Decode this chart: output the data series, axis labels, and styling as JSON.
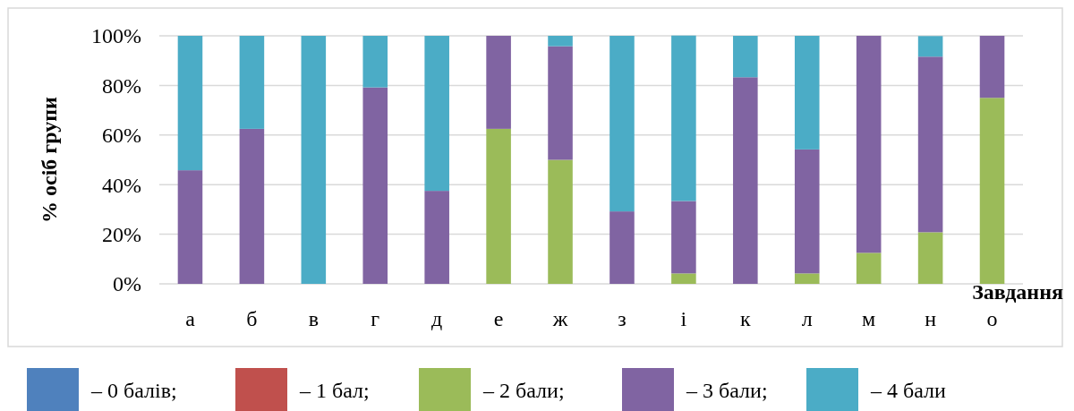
{
  "chart_data": {
    "type": "bar",
    "stacked": true,
    "ylabel": "% осіб групи",
    "xlabel": "Завдання",
    "categories": [
      "а",
      "б",
      "в",
      "г",
      "д",
      "е",
      "ж",
      "з",
      "і",
      "к",
      "л",
      "м",
      "н",
      "о"
    ],
    "series": [
      {
        "name": "– 0 балів;",
        "color": "#4f81bd",
        "values": [
          0,
          0,
          0,
          0,
          0,
          0,
          0,
          0,
          0,
          0,
          0,
          0,
          0,
          0
        ]
      },
      {
        "name": "– 1 бал;",
        "color": "#c0504d",
        "values": [
          0,
          0,
          0,
          0,
          0,
          0,
          0,
          0,
          0,
          0,
          0,
          0,
          0,
          0
        ]
      },
      {
        "name": "– 2 бали;",
        "color": "#9bbb59",
        "values": [
          0,
          0,
          0,
          0,
          0,
          62.5,
          50,
          0,
          4.2,
          0,
          4.2,
          12.5,
          20.8,
          75
        ]
      },
      {
        "name": "– 3 бали;",
        "color": "#8064a2",
        "values": [
          45.8,
          62.5,
          0,
          79.2,
          37.5,
          37.5,
          45.8,
          29.2,
          29.2,
          83.3,
          50,
          87.5,
          70.8,
          25
        ]
      },
      {
        "name": "– 4 бали",
        "color": "#4bacc6",
        "values": [
          54.2,
          37.5,
          100,
          20.8,
          62.5,
          0,
          4.2,
          70.8,
          66.7,
          16.7,
          45.8,
          0,
          8.3,
          0
        ]
      }
    ],
    "ylim": [
      0,
      100
    ],
    "yticks": [
      {
        "value": 0,
        "label": "0%"
      },
      {
        "value": 20,
        "label": "20%"
      },
      {
        "value": 40,
        "label": "40%"
      },
      {
        "value": 60,
        "label": "60%"
      },
      {
        "value": 80,
        "label": "80%"
      },
      {
        "value": 100,
        "label": "100%"
      }
    ],
    "grid": "y",
    "legend": "bottom"
  }
}
